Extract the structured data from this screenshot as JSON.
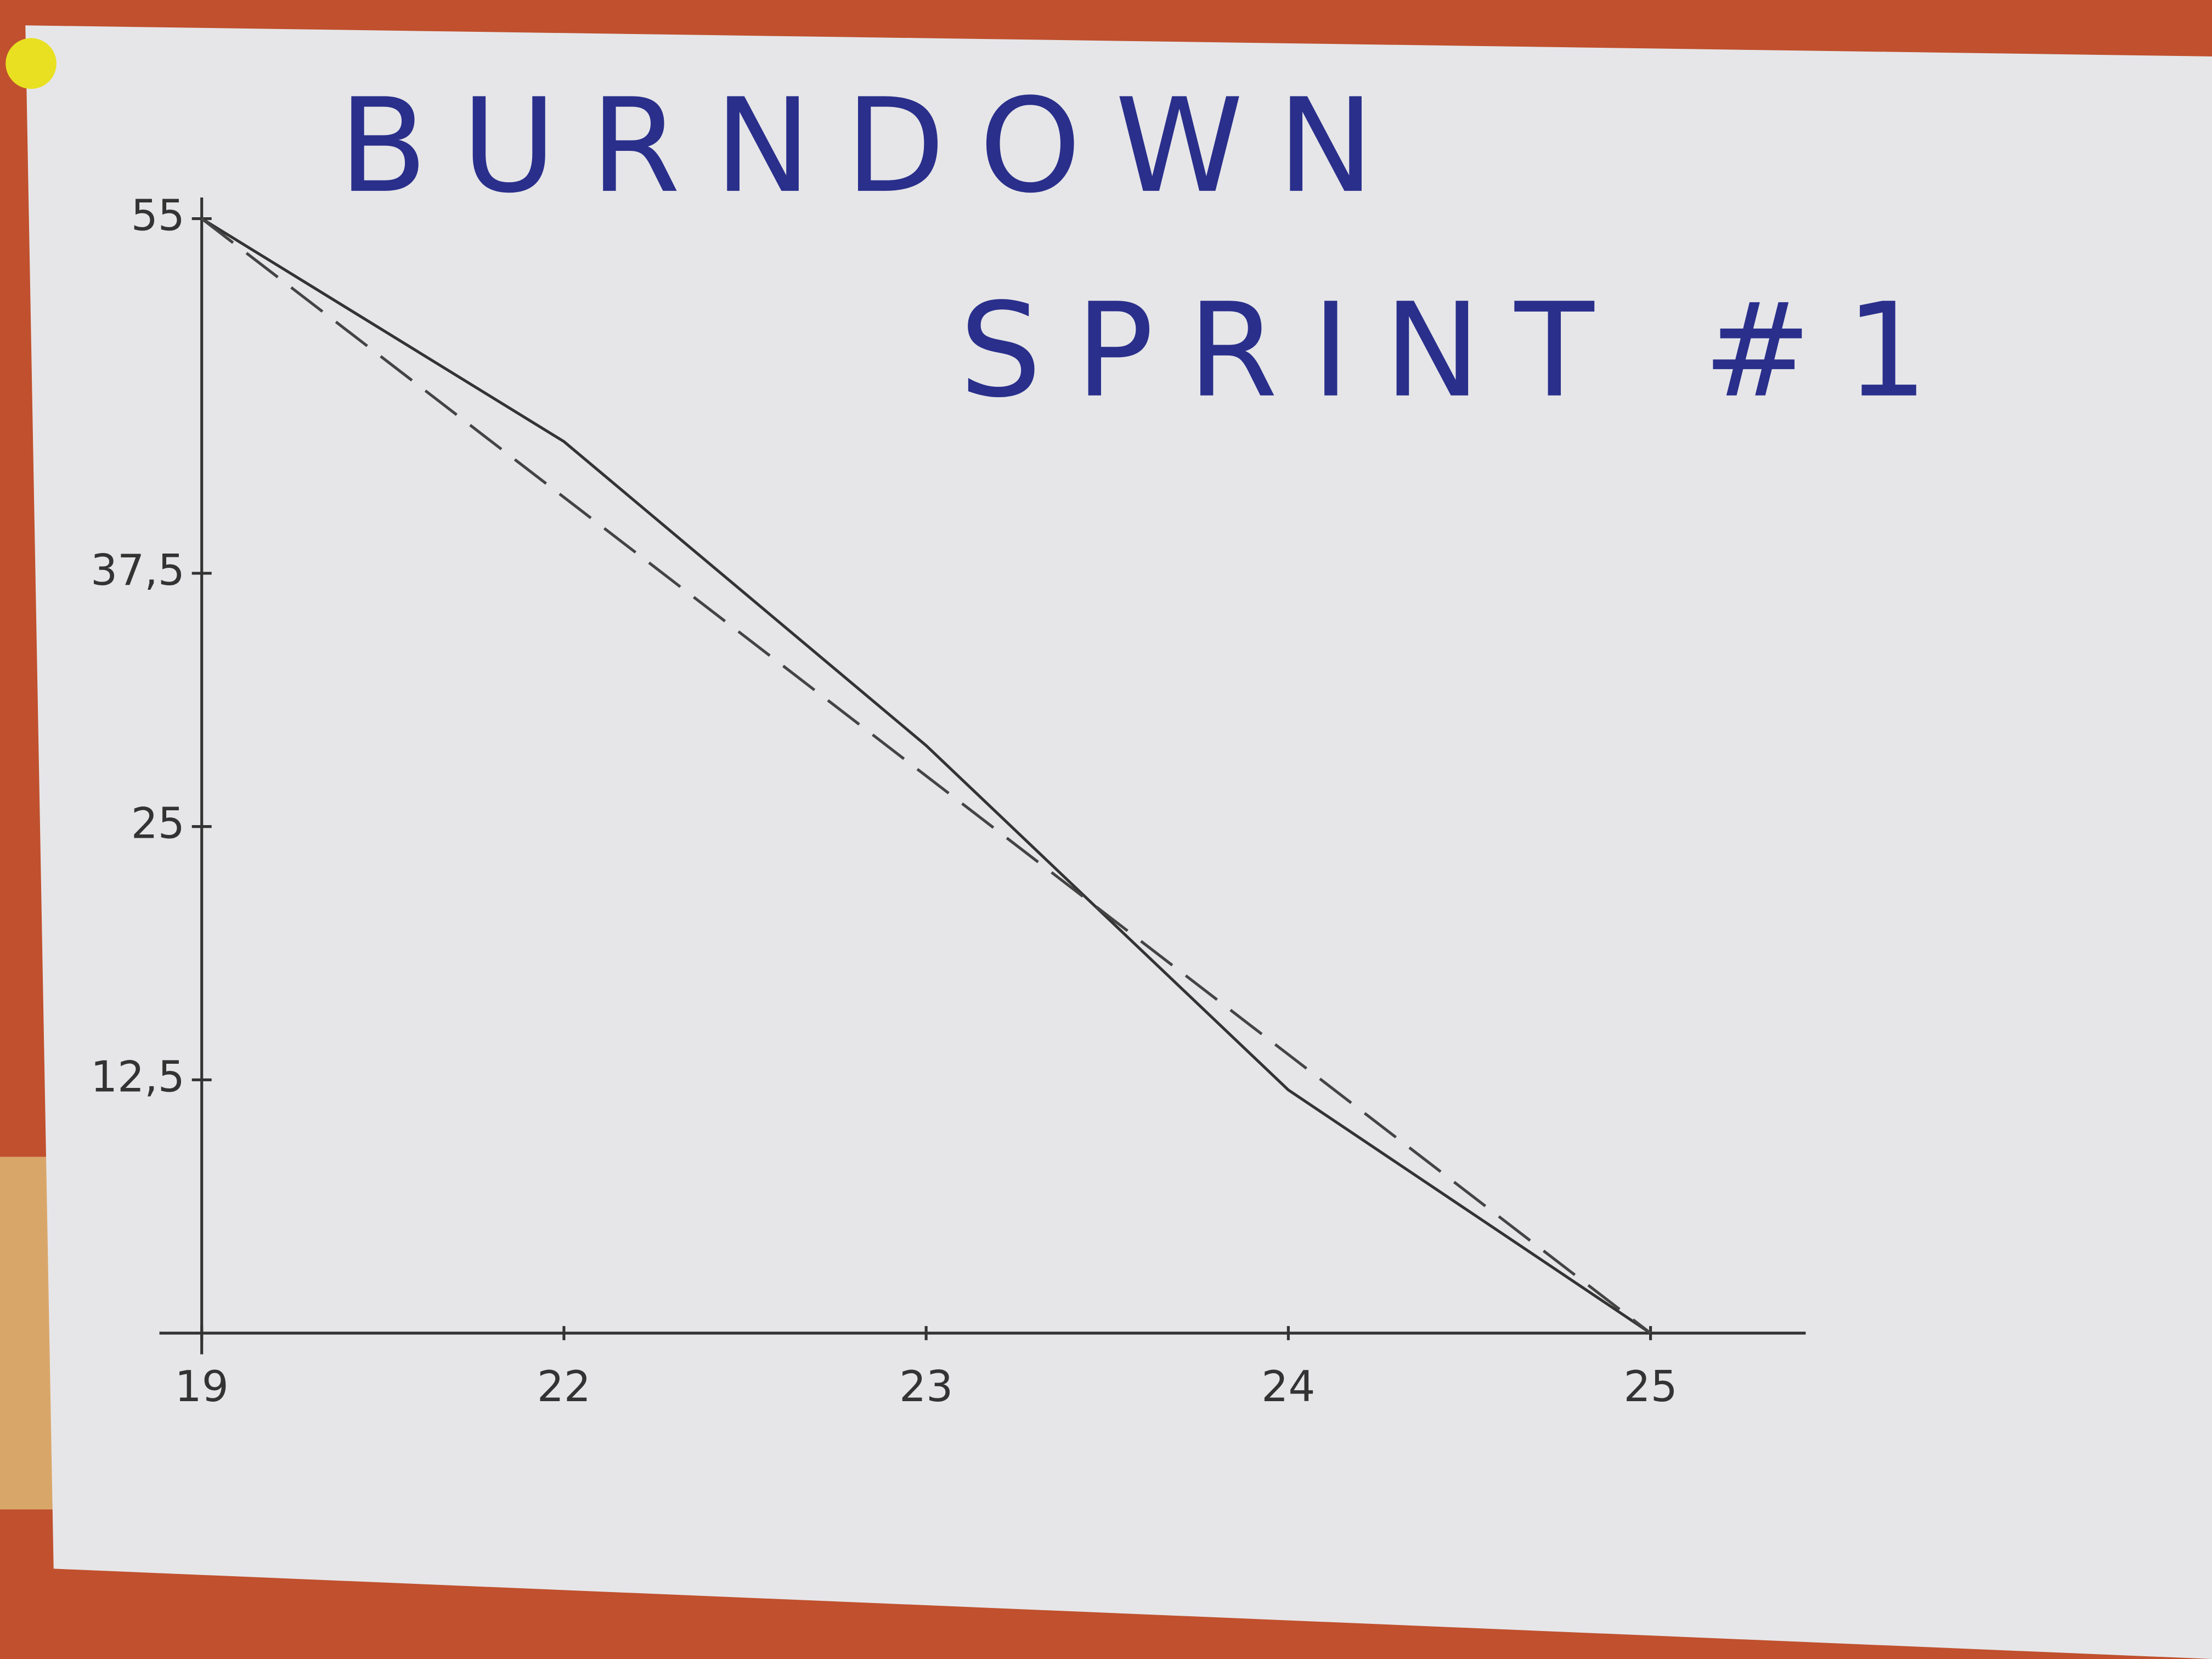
{
  "chart_data": {
    "type": "line",
    "title": "BURNDOWN SPRINT #1",
    "categories": [
      "19",
      "22",
      "23",
      "24",
      "25"
    ],
    "series": [
      {
        "color": "#333333",
        "dashed": false,
        "values": [
          55,
          44,
          29,
          12,
          0
        ]
      },
      {
        "color": "#444444",
        "dashed": true,
        "values": [
          55,
          41.25,
          27.5,
          13.75,
          0
        ]
      }
    ],
    "ylim": [
      0,
      55
    ],
    "yticks": [
      {
        "value": 12.5,
        "label": "12,5"
      },
      25,
      {
        "value": 37.5,
        "label": "37,5"
      },
      55
    ]
  }
}
